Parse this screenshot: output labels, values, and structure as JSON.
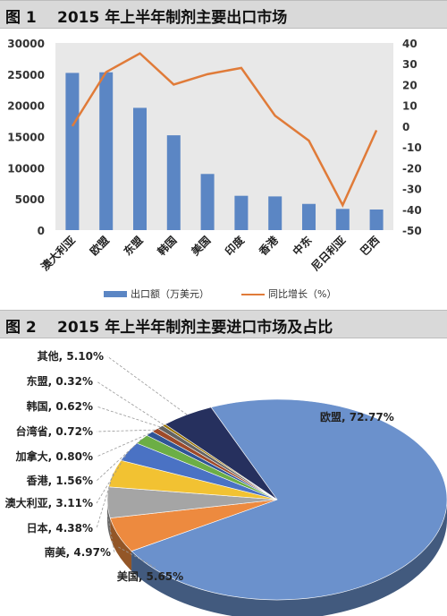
{
  "figures": [
    {
      "label": "图 1",
      "title": "2015 年上半年制剂主要出口市场"
    },
    {
      "label": "图 2",
      "title": "2015 年上半年制剂主要进口市场及占比"
    }
  ],
  "colors": {
    "bar": "#5b86c4",
    "line": "#e07b39",
    "plot_bg": "#e8e8e8",
    "pie_main": "#6b91cc"
  },
  "chart_data": [
    {
      "type": "bar",
      "categories": [
        "澳大利亚",
        "欧盟",
        "东盟",
        "韩国",
        "美国",
        "印度",
        "香港",
        "中东",
        "尼日利亚",
        "巴西"
      ],
      "series": [
        {
          "name": "出口额（万美元）",
          "type": "bar",
          "axis": "left",
          "values": [
            25200,
            25300,
            19600,
            15200,
            9000,
            5500,
            5400,
            4200,
            3400,
            3300
          ]
        },
        {
          "name": "同比增长（%）",
          "type": "line",
          "axis": "right",
          "values": [
            0,
            26,
            35,
            20,
            25,
            28,
            5,
            -7,
            -38,
            -2
          ]
        }
      ],
      "ylim_left": [
        0,
        30000
      ],
      "yticks_left": [
        "0",
        "5000",
        "10000",
        "15000",
        "20000",
        "25000",
        "30000"
      ],
      "ylim_right": [
        -50,
        40
      ],
      "yticks_right": [
        "40",
        "30",
        "20",
        "10",
        "0",
        "-10",
        "-20",
        "-30",
        "-40",
        "-50"
      ],
      "legend_position": "bottom"
    },
    {
      "type": "pie",
      "slices": [
        {
          "label": "欧盟, 72.77%",
          "value": 72.77,
          "color": "#6b91cc"
        },
        {
          "label": "美国, 5.65%",
          "value": 5.65,
          "color": "#ed8a3f"
        },
        {
          "label": "南美, 4.97%",
          "value": 4.97,
          "color": "#a5a5a5"
        },
        {
          "label": "日本, 4.38%",
          "value": 4.38,
          "color": "#f2c232"
        },
        {
          "label": "澳大利亚, 3.11%",
          "value": 3.11,
          "color": "#4a72c4"
        },
        {
          "label": "香港, 1.56%",
          "value": 1.56,
          "color": "#6cae45"
        },
        {
          "label": "加拿大, 0.80%",
          "value": 0.8,
          "color": "#2f5597"
        },
        {
          "label": "台湾省, 0.72%",
          "value": 0.72,
          "color": "#9e4a2a"
        },
        {
          "label": "韩国, 0.62%",
          "value": 0.62,
          "color": "#636363"
        },
        {
          "label": "东盟, 0.32%",
          "value": 0.32,
          "color": "#997300"
        },
        {
          "label": "其他, 5.10%",
          "value": 5.1,
          "color": "#26305e"
        }
      ]
    }
  ]
}
